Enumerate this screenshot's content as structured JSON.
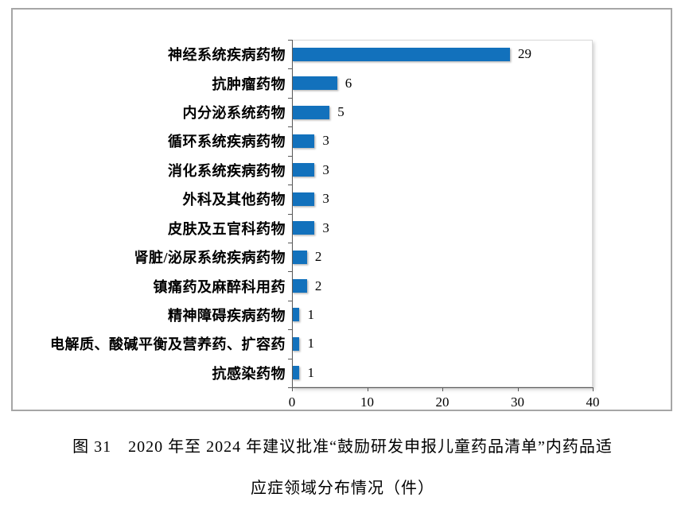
{
  "chart_data": {
    "type": "bar",
    "orientation": "horizontal",
    "title": "",
    "xlabel": "",
    "ylabel": "",
    "categories": [
      "神经系统疾病药物",
      "抗肿瘤药物",
      "内分泌系统药物",
      "循环系统疾病药物",
      "消化系统疾病药物",
      "外科及其他药物",
      "皮肤及五官科药物",
      "肾脏/泌尿系统疾病药物",
      "镇痛药及麻醉科用药",
      "精神障碍疾病药物",
      "电解质、酸碱平衡及营养药、扩容药",
      "抗感染药物"
    ],
    "values": [
      29,
      6,
      5,
      3,
      3,
      3,
      3,
      2,
      2,
      1,
      1,
      1
    ],
    "xlim": [
      0,
      40
    ],
    "x_ticks": [
      0,
      10,
      20,
      30,
      40
    ],
    "grid": false,
    "legend": false,
    "data_labels": true,
    "bar_color": "#1271bc",
    "axis_color": "#595959",
    "plot_border_color": "#d9d9d9",
    "outer_border_color": "#a6a6a6"
  },
  "caption": {
    "line1": "图 31　2020 年至 2024 年建议批准“鼓励研发申报儿童药品清单”内药品适",
    "line2": "应症领域分布情况（件）"
  }
}
